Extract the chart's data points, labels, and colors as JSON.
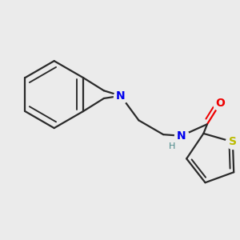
{
  "background_color": "#ebebeb",
  "bond_color": "#2a2a2a",
  "bond_width": 1.6,
  "atom_colors": {
    "N": "#0000ee",
    "O": "#ee0000",
    "S": "#bbbb00",
    "H": "#4a8888",
    "C": "#2a2a2a"
  },
  "font_size": 10,
  "figsize": [
    3.0,
    3.0
  ],
  "dpi": 100
}
